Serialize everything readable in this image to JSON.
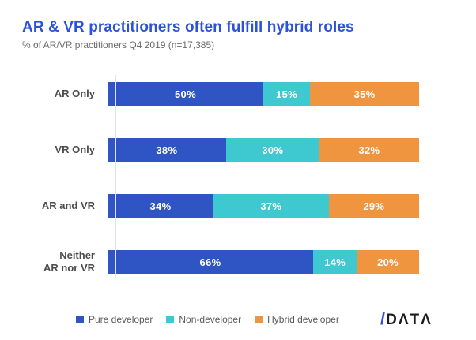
{
  "title": "AR & VR practitioners often fulfill hybrid roles",
  "subtitle": "% of AR/VR practitioners Q4 2019 (n=17,385)",
  "colors": {
    "title_blue": "#2C52DB",
    "pure_developer": "#2F55C4",
    "non_developer": "#3EC8CF",
    "hybrid_developer": "#F0953F",
    "axis_line": "#E3E3E3",
    "category_label": "#4C4C4C",
    "legend_text": "#5A5A5A",
    "bar_value_text": "#FFFFFF"
  },
  "chart_data": {
    "type": "bar",
    "orientation": "horizontal",
    "stacked": true,
    "percent_total": 100,
    "title": "AR & VR practitioners often fulfill hybrid roles",
    "subtitle": "% of AR/VR practitioners Q4 2019 (n=17,385)",
    "categories": [
      "AR Only",
      "VR Only",
      "AR and VR",
      "Neither\nAR nor VR"
    ],
    "series": [
      {
        "name": "Pure developer",
        "color": "#2F55C4",
        "values": [
          50,
          38,
          34,
          66
        ]
      },
      {
        "name": "Non-developer",
        "color": "#3EC8CF",
        "values": [
          15,
          30,
          37,
          14
        ]
      },
      {
        "name": "Hybrid developer",
        "color": "#F0953F",
        "values": [
          35,
          32,
          29,
          20
        ]
      }
    ],
    "value_suffix": "%",
    "xlim": [
      0,
      100
    ],
    "grid": false,
    "legend_position": "bottom"
  },
  "logo": {
    "slash": "/",
    "text": "DΛTΛ"
  }
}
